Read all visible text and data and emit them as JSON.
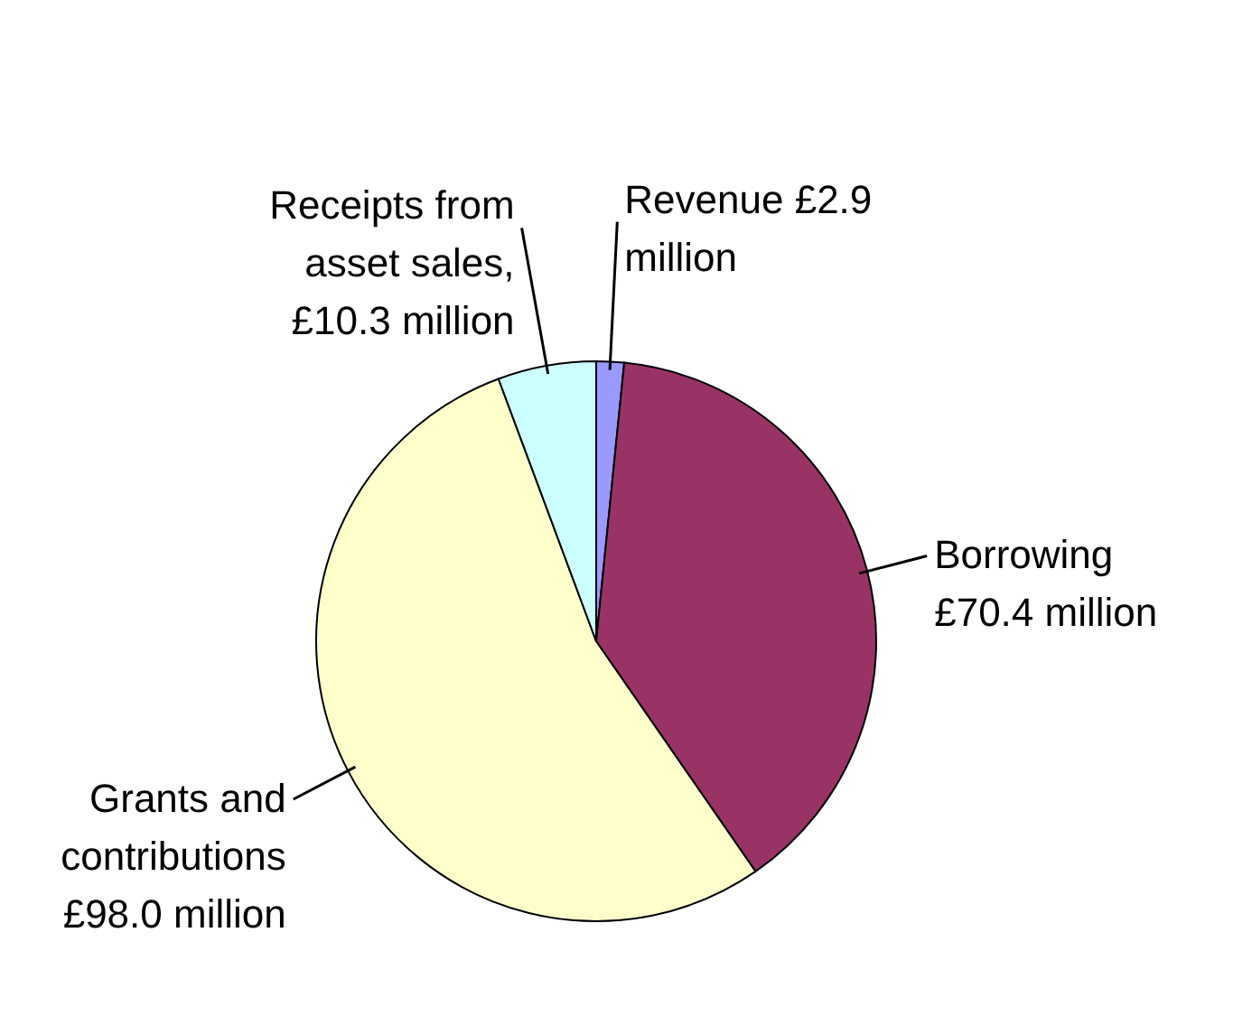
{
  "chart_data": {
    "type": "pie",
    "categories": [
      "Revenue £2.9\nmillion",
      "Borrowing\n£70.4 million",
      "Grants and\ncontributions\n£98.0 million",
      "Receipts from\nasset sales,\n£10.3 million"
    ],
    "values": [
      2.9,
      70.4,
      98.0,
      10.3
    ],
    "colors": [
      "#9999ff",
      "#993366",
      "#ffffcc",
      "#ccffff"
    ]
  }
}
